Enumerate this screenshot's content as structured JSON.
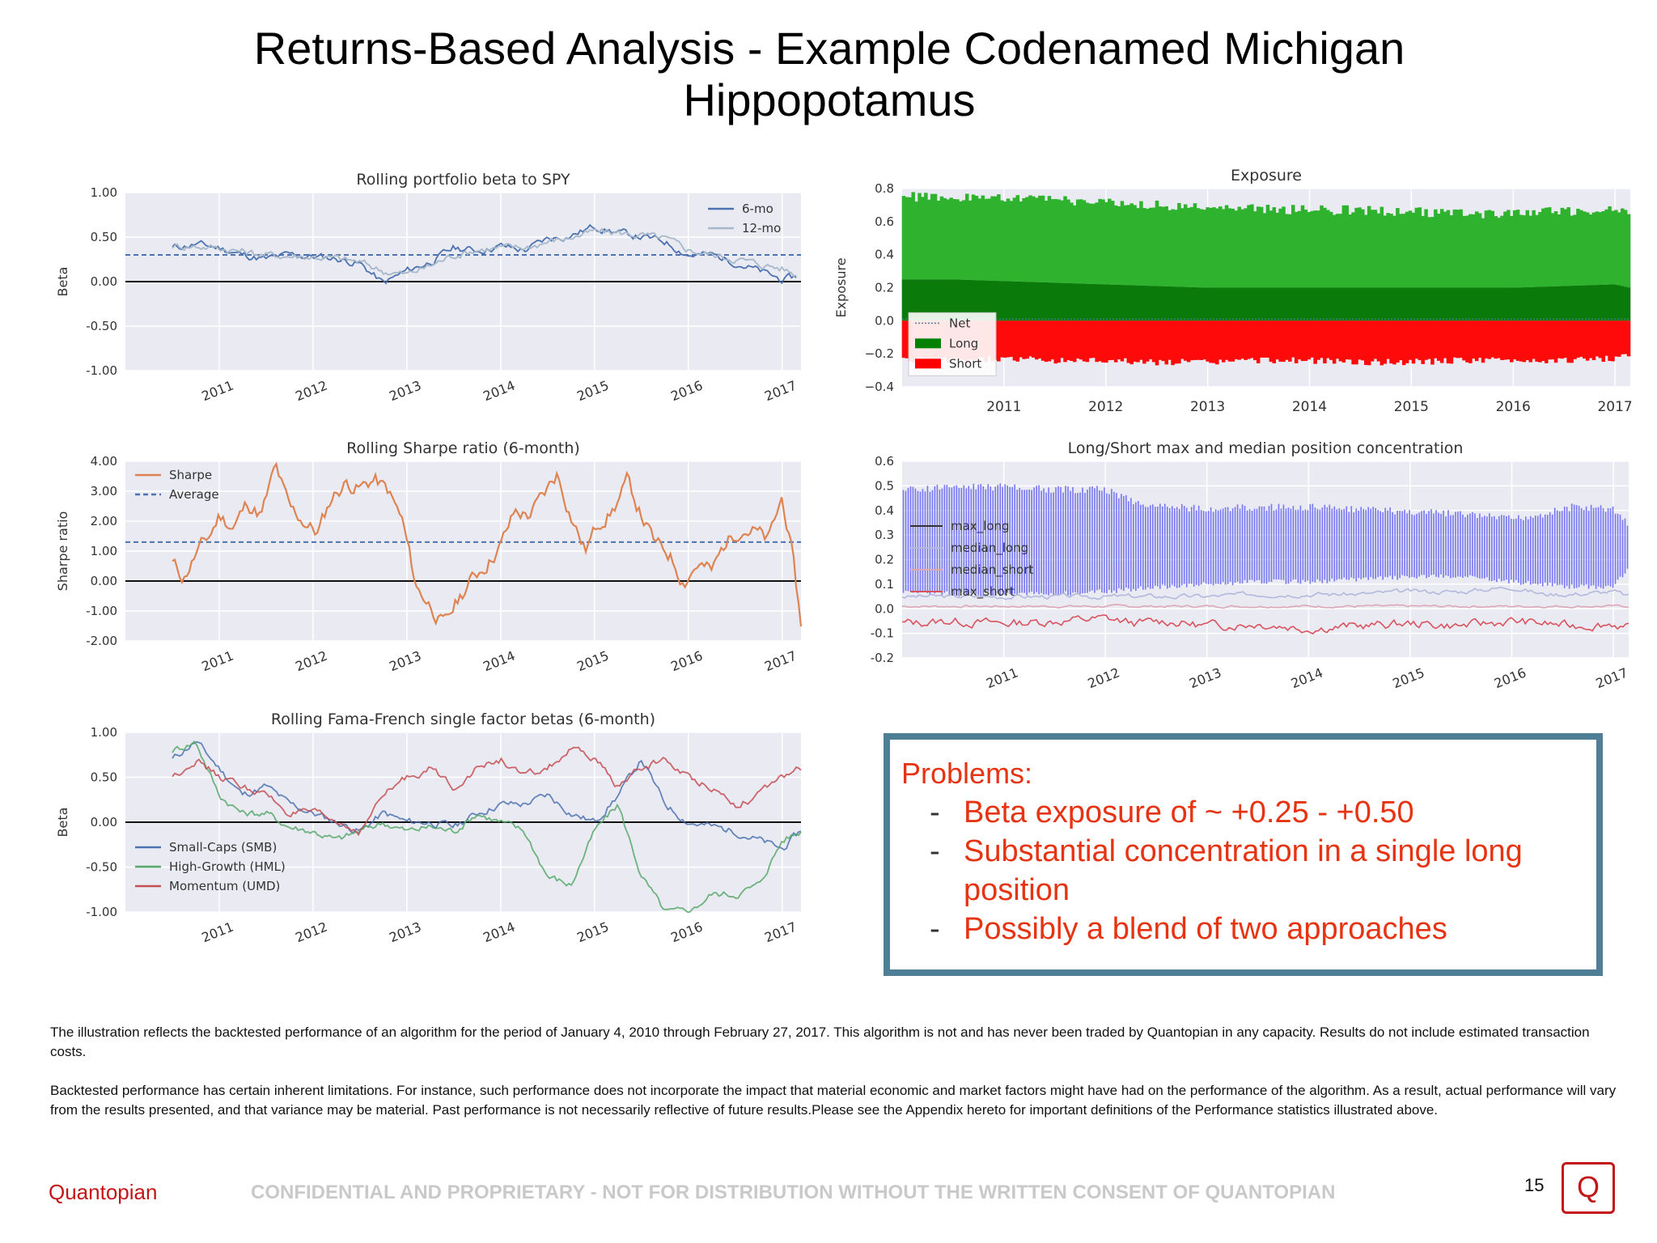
{
  "slide": {
    "title": "Returns-Based Analysis - Example Codenamed Michigan Hippopotamus",
    "problems": {
      "heading": "Problems:",
      "items": [
        "Beta exposure of ~ +0.25 - +0.50",
        "Substantial concentration in a single long position",
        "Possibly a blend of two approaches"
      ],
      "dash": "-"
    },
    "disclaimer_1": "The illustration reflects the backtested performance of an algorithm for the period of January 4, 2010 through February 27, 2017. This algorithm is not and has never been traded by Quantopian in any capacity. Results do not include estimated transaction costs.",
    "disclaimer_2": "Backtested performance has certain inherent limitations.  For instance, such performance does not incorporate the impact that material economic and market factors might have had on the performance of the algorithm. As a result, actual performance will vary from the results presented, and that variance may be material. Past performance is not necessarily reflective of future results.Please see the Appendix hereto for important definitions of the Performance statistics illustrated above.",
    "footer_brand": "Quantopian",
    "footer_confidential": "CONFIDENTIAL AND PROPRIETARY - NOT FOR DISTRIBUTION WITHOUT THE WRITTEN CONSENT OF QUANTOPIAN",
    "page_number": "15",
    "logo_letter": "Q"
  },
  "chart_data": [
    {
      "id": "beta",
      "type": "line",
      "title": "Rolling portfolio beta to SPY",
      "ylabel": "Beta",
      "xlim": [
        2010.0,
        2017.2
      ],
      "ylim": [
        -1.0,
        1.0
      ],
      "yticks": [
        "1.00",
        "0.50",
        "0.00",
        "-0.50",
        "-1.00"
      ],
      "ytick_values": [
        1.0,
        0.5,
        0.0,
        -0.5,
        -1.0
      ],
      "xticks": [
        "2011",
        "2012",
        "2013",
        "2014",
        "2015",
        "2016",
        "2017"
      ],
      "legend_position": "top-right",
      "average_line": 0.3,
      "zero_line": 0.0,
      "x": [
        2010.5,
        2010.75,
        2011.0,
        2011.25,
        2011.5,
        2011.75,
        2012.0,
        2012.25,
        2012.5,
        2012.75,
        2013.0,
        2013.25,
        2013.5,
        2013.75,
        2014.0,
        2014.25,
        2014.5,
        2014.75,
        2015.0,
        2015.25,
        2015.5,
        2015.75,
        2016.0,
        2016.25,
        2016.5,
        2016.75,
        2017.0,
        2017.15
      ],
      "series": [
        {
          "name": "6-mo",
          "color": "#4c72b0",
          "values": [
            0.38,
            0.42,
            0.38,
            0.3,
            0.25,
            0.3,
            0.28,
            0.26,
            0.2,
            -0.02,
            0.12,
            0.22,
            0.38,
            0.35,
            0.4,
            0.35,
            0.48,
            0.52,
            0.62,
            0.55,
            0.5,
            0.45,
            0.3,
            0.3,
            0.22,
            0.12,
            0.02,
            0.05
          ]
        },
        {
          "name": "12-mo",
          "color": "#a6b8c9",
          "values": [
            0.4,
            0.4,
            0.38,
            0.34,
            0.3,
            0.29,
            0.28,
            0.26,
            0.22,
            0.12,
            0.08,
            0.18,
            0.3,
            0.36,
            0.38,
            0.38,
            0.45,
            0.5,
            0.56,
            0.55,
            0.52,
            0.48,
            0.36,
            0.3,
            0.26,
            0.2,
            0.15,
            0.08
          ]
        }
      ]
    },
    {
      "id": "exposure",
      "type": "area",
      "title": "Exposure",
      "ylabel": "Exposure",
      "xlim": [
        2010.0,
        2017.15
      ],
      "ylim": [
        -0.4,
        0.8
      ],
      "yticks": [
        "0.8",
        "0.6",
        "0.4",
        "0.2",
        "0.0",
        "−0.2",
        "−0.4"
      ],
      "ytick_values": [
        0.8,
        0.6,
        0.4,
        0.2,
        0.0,
        -0.2,
        -0.4
      ],
      "xticks": [
        "2011",
        "2012",
        "2013",
        "2014",
        "2015",
        "2016",
        "2017"
      ],
      "legend_position": "bottom-left",
      "x": [
        2010.0,
        2010.5,
        2011.0,
        2011.5,
        2012.0,
        2012.5,
        2013.0,
        2013.5,
        2014.0,
        2014.5,
        2015.0,
        2015.5,
        2016.0,
        2016.5,
        2017.0,
        2017.15
      ],
      "long_max": [
        0.78,
        0.78,
        0.77,
        0.76,
        0.75,
        0.73,
        0.72,
        0.71,
        0.7,
        0.7,
        0.69,
        0.68,
        0.68,
        0.69,
        0.7,
        0.66
      ],
      "long_base": [
        0.25,
        0.25,
        0.24,
        0.23,
        0.22,
        0.21,
        0.2,
        0.2,
        0.2,
        0.2,
        0.2,
        0.2,
        0.2,
        0.21,
        0.22,
        0.2
      ],
      "short_min": [
        -0.26,
        -0.26,
        -0.25,
        -0.26,
        -0.26,
        -0.27,
        -0.27,
        -0.26,
        -0.26,
        -0.27,
        -0.27,
        -0.26,
        -0.26,
        -0.26,
        -0.25,
        -0.22
      ],
      "series": [
        {
          "name": "Net",
          "color": "#5a7d9a"
        },
        {
          "name": "Long",
          "color": "#008000"
        },
        {
          "name": "Short",
          "color": "#ff0000"
        }
      ]
    },
    {
      "id": "sharpe",
      "type": "line",
      "title": "Rolling Sharpe ratio (6-month)",
      "ylabel": "Sharpe ratio",
      "xlim": [
        2010.0,
        2017.2
      ],
      "ylim": [
        -2.0,
        4.0
      ],
      "yticks": [
        "4.00",
        "3.00",
        "2.00",
        "1.00",
        "0.00",
        "-1.00",
        "-2.00"
      ],
      "ytick_values": [
        4.0,
        3.0,
        2.0,
        1.0,
        0.0,
        -1.0,
        -2.0
      ],
      "xticks": [
        "2011",
        "2012",
        "2013",
        "2014",
        "2015",
        "2016",
        "2017"
      ],
      "legend_position": "top-left",
      "average_line": 1.3,
      "zero_line": 0.0,
      "x": [
        2010.5,
        2010.62,
        2010.75,
        2010.9,
        2011.0,
        2011.15,
        2011.3,
        2011.45,
        2011.6,
        2011.75,
        2011.9,
        2012.05,
        2012.2,
        2012.35,
        2012.5,
        2012.65,
        2012.8,
        2012.95,
        2013.1,
        2013.25,
        2013.4,
        2013.55,
        2013.7,
        2013.85,
        2014.0,
        2014.15,
        2014.3,
        2014.45,
        2014.6,
        2014.75,
        2014.9,
        2015.05,
        2015.2,
        2015.35,
        2015.5,
        2015.65,
        2015.8,
        2015.95,
        2016.1,
        2016.25,
        2016.4,
        2016.55,
        2016.7,
        2016.85,
        2017.0,
        2017.1,
        2017.2
      ],
      "series": [
        {
          "name": "Sharpe",
          "color": "#dd8452",
          "values": [
            0.6,
            0.1,
            0.9,
            1.5,
            2.2,
            1.8,
            2.6,
            2.2,
            3.8,
            2.4,
            2.0,
            1.6,
            2.8,
            3.3,
            3.1,
            3.4,
            3.0,
            2.0,
            -0.2,
            -0.8,
            -1.5,
            -0.6,
            0.1,
            0.6,
            1.2,
            2.3,
            2.2,
            2.8,
            3.6,
            2.2,
            1.0,
            2.0,
            2.4,
            3.3,
            2.2,
            1.2,
            0.9,
            0.0,
            0.6,
            0.3,
            1.3,
            1.8,
            1.7,
            1.3,
            2.8,
            1.0,
            -1.5
          ]
        },
        {
          "name": "Average",
          "color": "#4c72b0"
        }
      ]
    },
    {
      "id": "concentration",
      "type": "line",
      "title": "Long/Short max and median position concentration",
      "xlim": [
        2010.0,
        2017.15
      ],
      "ylim": [
        -0.2,
        0.6
      ],
      "yticks": [
        "0.6",
        "0.5",
        "0.4",
        "0.3",
        "0.2",
        "0.1",
        "0.0",
        "-0.1",
        "-0.2"
      ],
      "ytick_values": [
        0.6,
        0.5,
        0.4,
        0.3,
        0.2,
        0.1,
        0.0,
        -0.1,
        -0.2
      ],
      "xticks": [
        "2011",
        "2012",
        "2013",
        "2014",
        "2015",
        "2016",
        "2017"
      ],
      "legend_position": "center-left",
      "x": [
        2010.0,
        2010.5,
        2011.0,
        2011.5,
        2012.0,
        2012.3,
        2012.6,
        2013.0,
        2013.5,
        2014.0,
        2014.5,
        2015.0,
        2015.5,
        2016.0,
        2016.3,
        2016.6,
        2017.0,
        2017.15
      ],
      "max_long_top": [
        0.5,
        0.51,
        0.51,
        0.5,
        0.5,
        0.45,
        0.43,
        0.42,
        0.43,
        0.43,
        0.42,
        0.41,
        0.4,
        0.38,
        0.4,
        0.43,
        0.42,
        0.36
      ],
      "max_long_bottom": [
        0.06,
        0.05,
        0.05,
        0.05,
        0.06,
        0.07,
        0.08,
        0.09,
        0.1,
        0.1,
        0.11,
        0.12,
        0.12,
        0.1,
        0.09,
        0.08,
        0.08,
        0.16
      ],
      "median_long": [
        0.05,
        0.05,
        0.05,
        0.05,
        0.05,
        0.05,
        0.05,
        0.05,
        0.06,
        0.06,
        0.06,
        0.07,
        0.07,
        0.09,
        0.06,
        0.06,
        0.07,
        0.05
      ],
      "median_short": [
        0.01,
        0.01,
        0.01,
        0.01,
        0.01,
        0.01,
        0.01,
        0.01,
        0.01,
        0.01,
        0.01,
        0.01,
        0.01,
        0.01,
        0.01,
        0.01,
        0.01,
        0.01
      ],
      "max_short": [
        -0.06,
        -0.05,
        -0.06,
        -0.05,
        -0.04,
        -0.06,
        -0.05,
        -0.07,
        -0.06,
        -0.08,
        -0.07,
        -0.06,
        -0.07,
        -0.05,
        -0.06,
        -0.07,
        -0.06,
        -0.08
      ],
      "series": [
        {
          "name": "max_long",
          "color": "#6a6ae8"
        },
        {
          "name": "median_long",
          "color": "#b3b8dd"
        },
        {
          "name": "median_short",
          "color": "#dda7b6"
        },
        {
          "name": "max_short",
          "color": "#d9535e"
        }
      ]
    },
    {
      "id": "famafrench",
      "type": "line",
      "title": "Rolling Fama-French single factor betas (6-month)",
      "ylabel": "Beta",
      "xlim": [
        2010.0,
        2017.2
      ],
      "ylim": [
        -1.0,
        1.0
      ],
      "yticks": [
        "1.00",
        "0.50",
        "0.00",
        "-0.50",
        "-1.00"
      ],
      "ytick_values": [
        1.0,
        0.5,
        0.0,
        -0.5,
        -1.0
      ],
      "xticks": [
        "2011",
        "2012",
        "2013",
        "2014",
        "2015",
        "2016",
        "2017"
      ],
      "legend_position": "bottom-left",
      "zero_line": 0.0,
      "x": [
        2010.5,
        2010.75,
        2011.0,
        2011.25,
        2011.5,
        2011.75,
        2012.0,
        2012.25,
        2012.5,
        2012.75,
        2013.0,
        2013.25,
        2013.5,
        2013.75,
        2014.0,
        2014.25,
        2014.5,
        2014.75,
        2015.0,
        2015.25,
        2015.5,
        2015.75,
        2016.0,
        2016.25,
        2016.5,
        2016.75,
        2017.0,
        2017.2
      ],
      "series": [
        {
          "name": "Small-Caps (SMB)",
          "color": "#4c72b0",
          "values": [
            0.7,
            0.9,
            0.6,
            0.3,
            0.4,
            0.2,
            0.1,
            0.0,
            -0.1,
            0.1,
            0.0,
            0.0,
            -0.05,
            0.1,
            0.2,
            0.2,
            0.3,
            0.1,
            0.0,
            0.3,
            0.7,
            0.2,
            0.0,
            -0.05,
            -0.1,
            -0.2,
            -0.3,
            -0.1
          ]
        },
        {
          "name": "High-Growth (HML)",
          "color": "#55a868",
          "values": [
            0.8,
            0.9,
            0.3,
            0.1,
            0.1,
            -0.05,
            -0.1,
            -0.2,
            -0.1,
            0.0,
            -0.1,
            -0.05,
            -0.1,
            0.1,
            0.0,
            -0.1,
            -0.6,
            -0.7,
            -0.1,
            0.2,
            -0.6,
            -1.0,
            -1.0,
            -0.8,
            -0.8,
            -0.7,
            -0.2,
            -0.1
          ]
        },
        {
          "name": "Momentum (UMD)",
          "color": "#c44e52",
          "values": [
            0.5,
            0.7,
            0.5,
            0.4,
            0.3,
            0.1,
            0.1,
            0.0,
            -0.1,
            0.3,
            0.5,
            0.6,
            0.4,
            0.6,
            0.7,
            0.5,
            0.6,
            0.8,
            0.7,
            0.4,
            0.6,
            0.7,
            0.5,
            0.4,
            0.2,
            0.3,
            0.5,
            0.6
          ]
        }
      ]
    }
  ]
}
